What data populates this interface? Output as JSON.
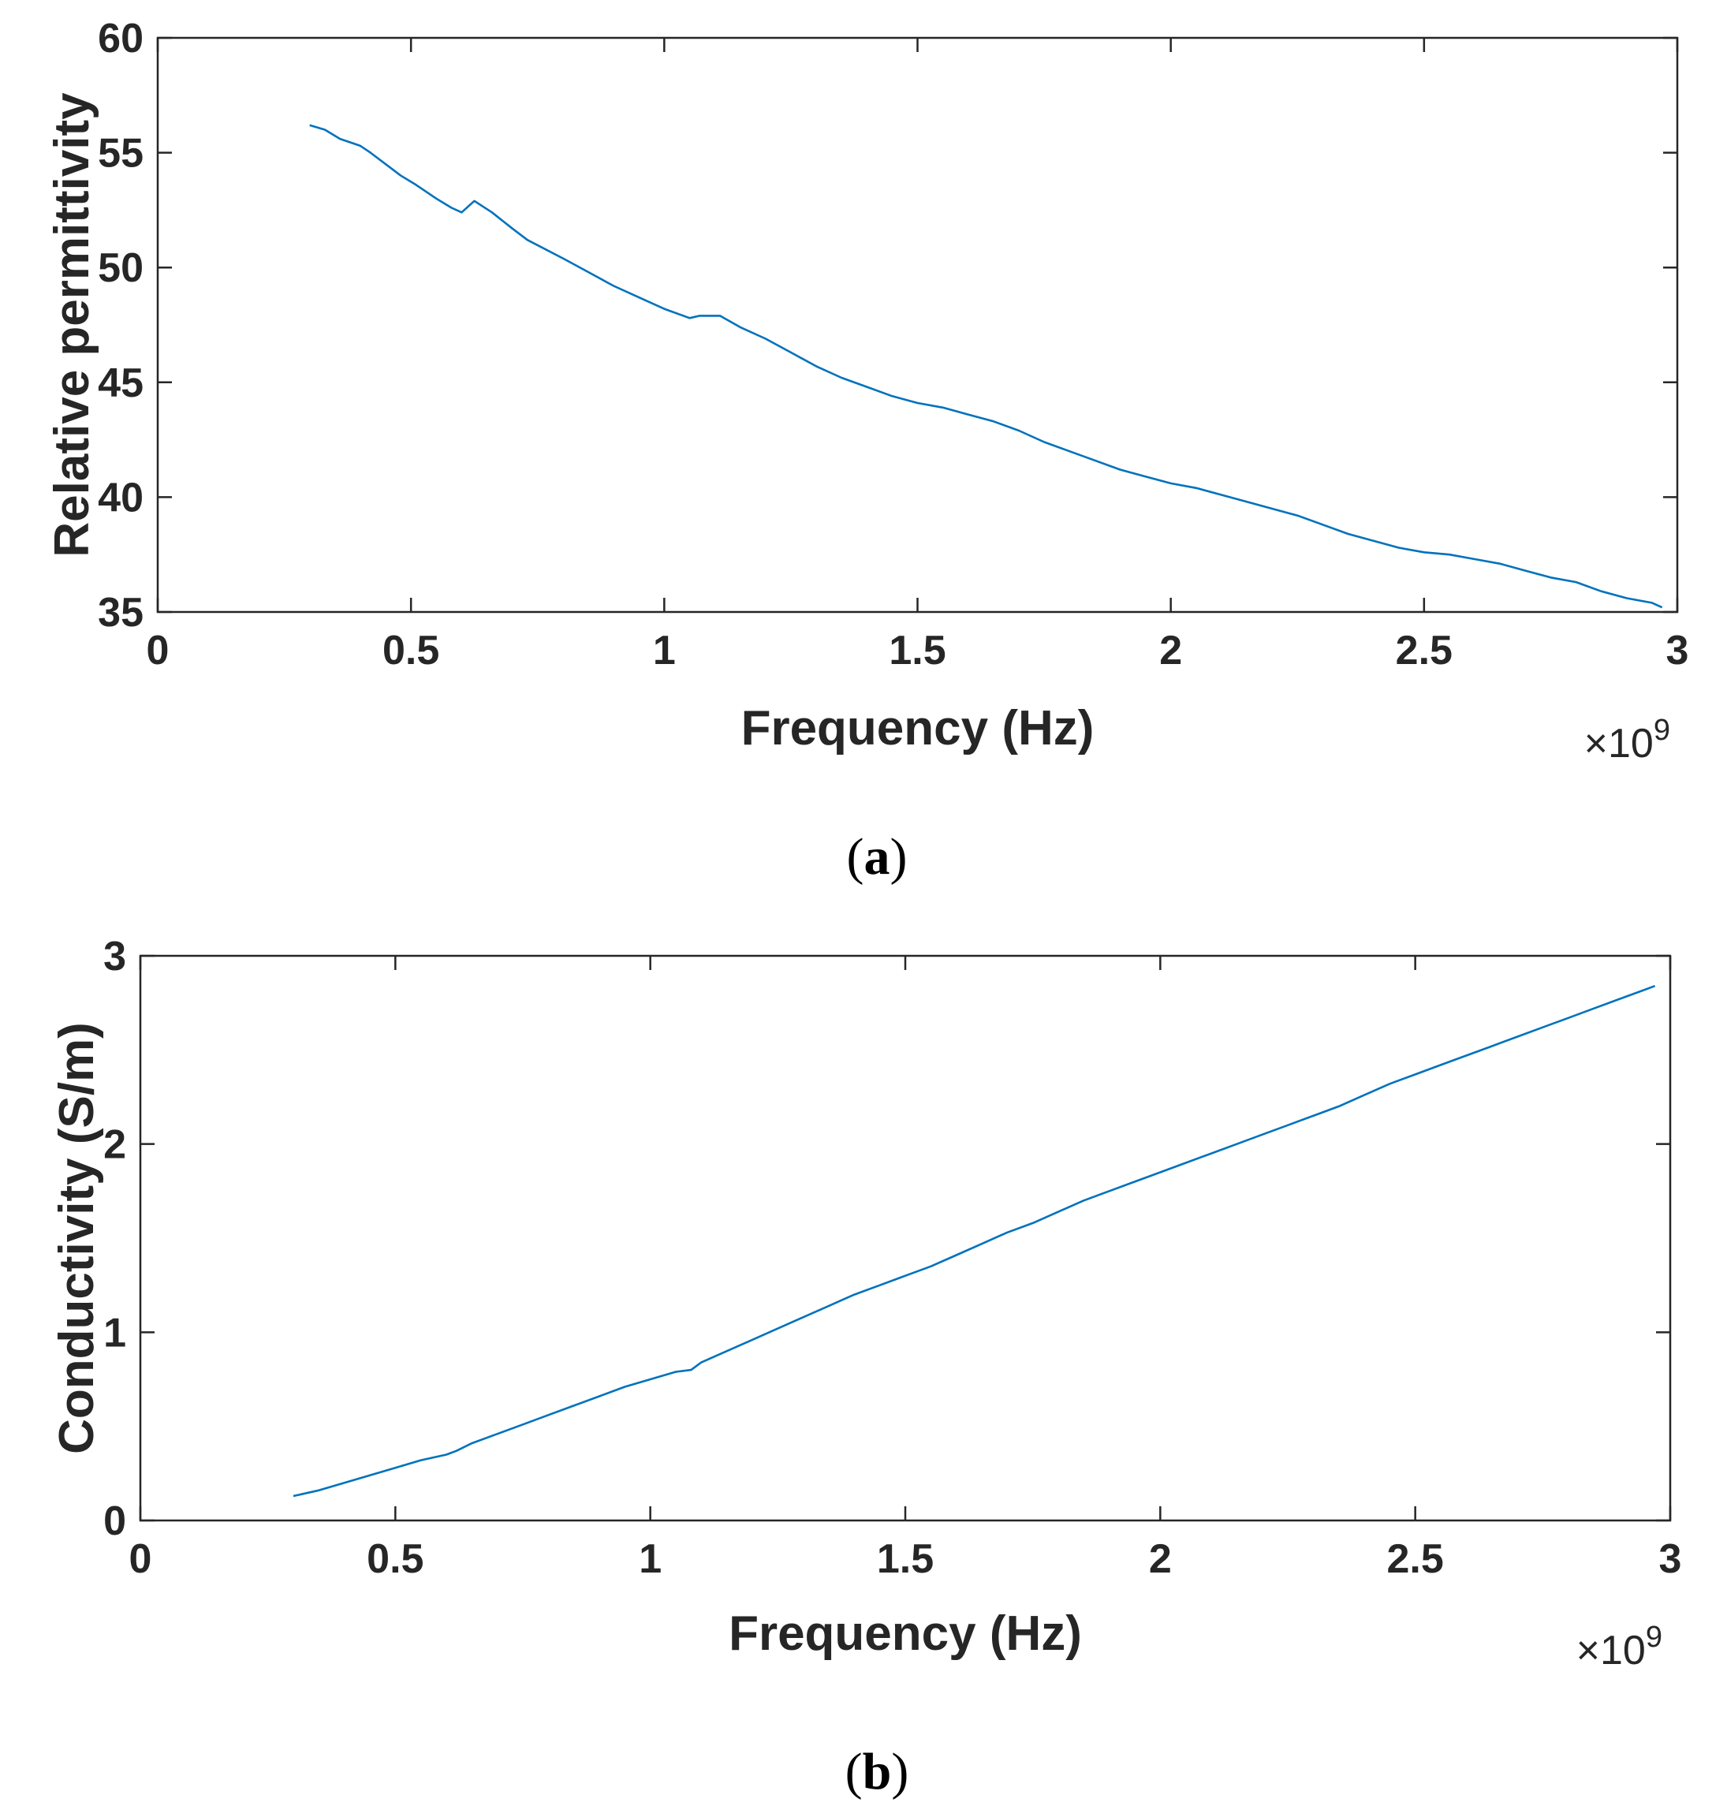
{
  "chart_data": [
    {
      "id": "a",
      "type": "line",
      "panel_label": "a",
      "title": "",
      "xlabel": "Frequency (Hz)",
      "ylabel": "Relative permittivity",
      "x_exponent_label": "×10",
      "x_exponent": "9",
      "xlim": [
        0,
        3
      ],
      "ylim": [
        35,
        60
      ],
      "xticks": [
        0,
        0.5,
        1,
        1.5,
        2,
        2.5,
        3
      ],
      "xtick_labels": [
        "0",
        "0.5",
        "1",
        "1.5",
        "2",
        "2.5",
        "3"
      ],
      "yticks": [
        35,
        40,
        45,
        50,
        55,
        60
      ],
      "ytick_labels": [
        "35",
        "40",
        "45",
        "50",
        "55",
        "60"
      ],
      "grid": false,
      "series": [
        {
          "name": "Relative permittivity",
          "color": "#0072BD",
          "x": [
            0.3,
            0.33,
            0.36,
            0.4,
            0.42,
            0.45,
            0.48,
            0.51,
            0.55,
            0.58,
            0.6,
            0.625,
            0.66,
            0.7,
            0.73,
            0.8,
            0.85,
            0.9,
            0.95,
            1.0,
            1.05,
            1.07,
            1.11,
            1.15,
            1.2,
            1.25,
            1.3,
            1.35,
            1.4,
            1.45,
            1.5,
            1.55,
            1.6,
            1.65,
            1.7,
            1.75,
            1.8,
            1.85,
            1.9,
            1.95,
            2.0,
            2.05,
            2.1,
            2.15,
            2.2,
            2.25,
            2.3,
            2.35,
            2.4,
            2.45,
            2.5,
            2.55,
            2.6,
            2.65,
            2.7,
            2.75,
            2.8,
            2.85,
            2.9,
            2.95,
            2.97
          ],
          "values": [
            56.2,
            56.0,
            55.6,
            55.3,
            55.0,
            54.5,
            54.0,
            53.6,
            53.0,
            52.6,
            52.4,
            52.9,
            52.4,
            51.7,
            51.2,
            50.4,
            49.8,
            49.2,
            48.7,
            48.2,
            47.8,
            47.9,
            47.9,
            47.4,
            46.9,
            46.3,
            45.7,
            45.2,
            44.8,
            44.4,
            44.1,
            43.9,
            43.6,
            43.3,
            42.9,
            42.4,
            42.0,
            41.6,
            41.2,
            40.9,
            40.6,
            40.4,
            40.1,
            39.8,
            39.5,
            39.2,
            38.8,
            38.4,
            38.1,
            37.8,
            37.6,
            37.5,
            37.3,
            37.1,
            36.8,
            36.5,
            36.3,
            35.9,
            35.6,
            35.4,
            35.2
          ]
        }
      ]
    },
    {
      "id": "b",
      "type": "line",
      "panel_label": "b",
      "title": "",
      "xlabel": "Frequency (Hz)",
      "ylabel": "Conductivity (S/m)",
      "x_exponent_label": "×10",
      "x_exponent": "9",
      "xlim": [
        0,
        3
      ],
      "ylim": [
        0,
        3
      ],
      "xticks": [
        0,
        0.5,
        1,
        1.5,
        2,
        2.5,
        3
      ],
      "xtick_labels": [
        "0",
        "0.5",
        "1",
        "1.5",
        "2",
        "2.5",
        "3"
      ],
      "yticks": [
        0,
        1,
        2,
        3
      ],
      "ytick_labels": [
        "0",
        "1",
        "2",
        "3"
      ],
      "grid": false,
      "series": [
        {
          "name": "Conductivity",
          "color": "#0072BD",
          "x": [
            0.3,
            0.35,
            0.4,
            0.45,
            0.5,
            0.55,
            0.6,
            0.62,
            0.65,
            0.7,
            0.75,
            0.8,
            0.85,
            0.9,
            0.95,
            1.0,
            1.05,
            1.08,
            1.1,
            1.15,
            1.2,
            1.25,
            1.3,
            1.35,
            1.4,
            1.45,
            1.5,
            1.55,
            1.6,
            1.65,
            1.7,
            1.75,
            1.8,
            1.85,
            1.9,
            1.95,
            2.0,
            2.05,
            2.1,
            2.15,
            2.2,
            2.25,
            2.3,
            2.35,
            2.4,
            2.45,
            2.5,
            2.55,
            2.6,
            2.65,
            2.7,
            2.75,
            2.8,
            2.85,
            2.9,
            2.95,
            2.97
          ],
          "values": [
            0.13,
            0.16,
            0.2,
            0.24,
            0.28,
            0.32,
            0.35,
            0.37,
            0.41,
            0.46,
            0.51,
            0.56,
            0.61,
            0.66,
            0.71,
            0.75,
            0.79,
            0.8,
            0.84,
            0.9,
            0.96,
            1.02,
            1.08,
            1.14,
            1.2,
            1.25,
            1.3,
            1.35,
            1.41,
            1.47,
            1.53,
            1.58,
            1.64,
            1.7,
            1.75,
            1.8,
            1.85,
            1.9,
            1.95,
            2.0,
            2.05,
            2.1,
            2.15,
            2.2,
            2.26,
            2.32,
            2.37,
            2.42,
            2.47,
            2.52,
            2.57,
            2.62,
            2.67,
            2.72,
            2.77,
            2.82,
            2.84
          ]
        }
      ]
    }
  ]
}
